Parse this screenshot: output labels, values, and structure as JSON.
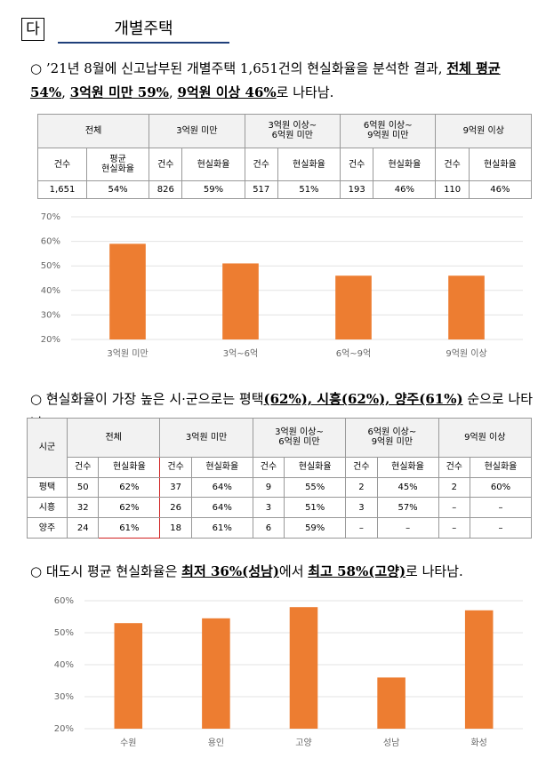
{
  "header": {
    "marker": "다",
    "title": "개별주택"
  },
  "paragraphs": [
    {
      "runs": [
        {
          "text": "○ ’21년 8월에 신고납부된 개별주택 1,651건의 현실화율을 분석한 결과, "
        },
        {
          "text": "전체 평균 54%",
          "bold": true
        },
        {
          "text": ", "
        },
        {
          "text": "3억원 미만 59%",
          "bold": true
        },
        {
          "text": ", "
        },
        {
          "text": "9억원 이상 46%",
          "bold": true
        },
        {
          "text": "로 나타남."
        }
      ]
    },
    {
      "runs": [
        {
          "text": "○ 현실화율이 가장 높은 시·군으로는 평택"
        },
        {
          "text": "(62%), 시흥(62%), 양주(61%)",
          "bold": true
        },
        {
          "text": " 순으로 나타남."
        }
      ]
    },
    {
      "runs": [
        {
          "text": "○ 대도시 평균 현실화율은 "
        },
        {
          "text": "최저 36%(성남)",
          "bold": true
        },
        {
          "text": "에서 "
        },
        {
          "text": "최고 58%(고양)",
          "bold": true
        },
        {
          "text": "로 나타남."
        }
      ]
    }
  ],
  "tables": [
    {
      "groups": [
        "전체",
        "3억원 미만",
        "3억원 이상~\n6억원 미만",
        "6억원 이상~\n9억원 미만",
        "9억원 이상"
      ],
      "subheads": [
        "건수",
        "평균\n현실화율",
        "건수",
        "현실화율",
        "건수",
        "현실화율",
        "건수",
        "현실화율",
        "건수",
        "현실화율"
      ],
      "rows": [
        [
          "1,651",
          "54%",
          "826",
          "59%",
          "517",
          "51%",
          "193",
          "46%",
          "110",
          "46%"
        ]
      ]
    },
    {
      "corner": "시군",
      "groups": [
        "전체",
        "3억원 미만",
        "3억원 이상~\n6억원 미만",
        "6억원 이상~\n9억원 미만",
        "9억원 이상"
      ],
      "subheads": [
        "건수",
        "현실화율",
        "건수",
        "현실화율",
        "건수",
        "현실화율",
        "건수",
        "현실화율",
        "건수",
        "현실화율"
      ],
      "rows": [
        [
          "평택",
          "50",
          "62%",
          "37",
          "64%",
          "9",
          "55%",
          "2",
          "45%",
          "2",
          "60%"
        ],
        [
          "시흥",
          "32",
          "62%",
          "26",
          "64%",
          "3",
          "51%",
          "3",
          "57%",
          "–",
          "–"
        ],
        [
          "양주",
          "24",
          "61%",
          "18",
          "61%",
          "6",
          "59%",
          "–",
          "–",
          "–",
          "–"
        ]
      ]
    }
  ],
  "chart_data": [
    {
      "type": "bar",
      "categories": [
        "3억원 미만",
        "3억~6억",
        "6억~9억",
        "9억원 이상"
      ],
      "values": [
        59,
        51,
        46,
        46
      ],
      "color": "#ed7d31",
      "ylim": [
        20,
        70
      ],
      "yticks": [
        {
          "value": 20,
          "label": "20%"
        },
        {
          "value": 30,
          "label": "30%"
        },
        {
          "value": 40,
          "label": "40%"
        },
        {
          "value": 50,
          "label": "50%"
        },
        {
          "value": 60,
          "label": "60%"
        },
        {
          "value": 70,
          "label": "70%"
        }
      ],
      "grid": true
    },
    {
      "type": "bar",
      "categories": [
        "수원",
        "용인",
        "고양",
        "성남",
        "화성"
      ],
      "values": [
        53,
        54.5,
        58,
        36,
        57
      ],
      "color": "#ed7d31",
      "ylim": [
        20,
        60
      ],
      "yticks": [
        {
          "value": 20,
          "label": "20%"
        },
        {
          "value": 30,
          "label": "30%"
        },
        {
          "value": 40,
          "label": "40%"
        },
        {
          "value": 50,
          "label": "50%"
        },
        {
          "value": 60,
          "label": "60%"
        }
      ],
      "grid": true
    }
  ]
}
